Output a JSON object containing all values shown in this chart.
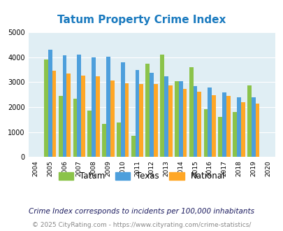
{
  "title": "Tatum Property Crime Index",
  "years": [
    2004,
    2005,
    2006,
    2007,
    2008,
    2009,
    2010,
    2011,
    2012,
    2013,
    2014,
    2015,
    2016,
    2017,
    2018,
    2019,
    2020
  ],
  "tatum": [
    null,
    3900,
    2450,
    2350,
    1850,
    1330,
    1390,
    850,
    3730,
    4100,
    3040,
    3600,
    1930,
    1620,
    1810,
    2870,
    null
  ],
  "texas": [
    null,
    4300,
    4080,
    4100,
    3990,
    4020,
    3800,
    3480,
    3390,
    3240,
    3040,
    2840,
    2780,
    2580,
    2390,
    2390,
    null
  ],
  "national": [
    null,
    3460,
    3360,
    3270,
    3230,
    3060,
    2960,
    2940,
    2920,
    2860,
    2730,
    2620,
    2490,
    2450,
    2200,
    2130,
    null
  ],
  "tatum_color": "#8bc34a",
  "texas_color": "#4d9fdc",
  "national_color": "#ffa726",
  "bg_color": "#e0eef4",
  "ylim": [
    0,
    5000
  ],
  "yticks": [
    0,
    1000,
    2000,
    3000,
    4000,
    5000
  ],
  "subtitle": "Crime Index corresponds to incidents per 100,000 inhabitants",
  "footer": "© 2025 CityRating.com - https://www.cityrating.com/crime-statistics/",
  "title_color": "#1a7abf",
  "subtitle_color": "#1a1a5e",
  "footer_color": "#888888"
}
